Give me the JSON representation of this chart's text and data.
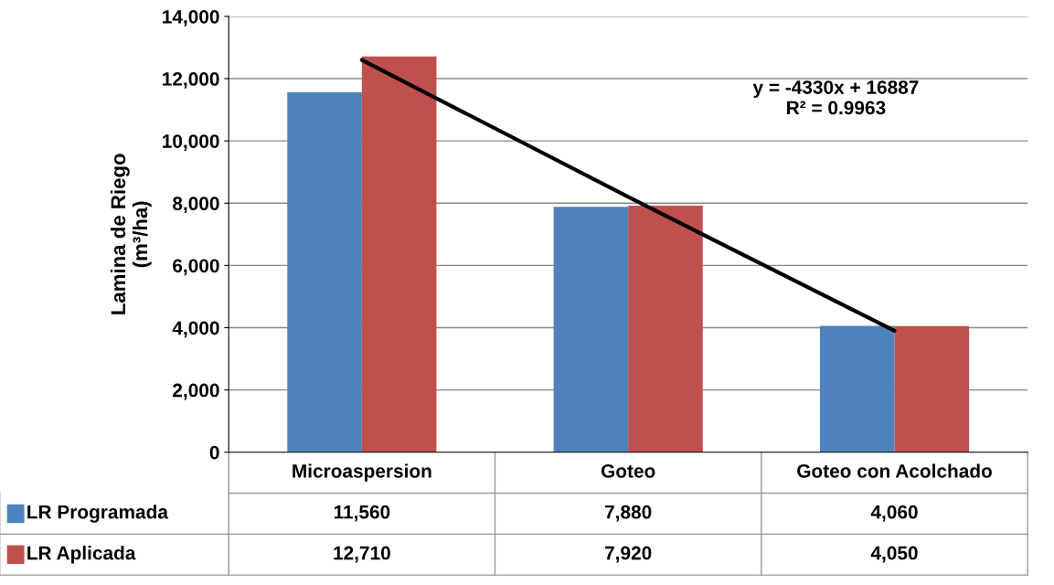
{
  "chart_data": {
    "type": "bar",
    "ylabel": "Lamina de Riego\n(m³/ha)",
    "categories": [
      "Microaspersion",
      "Goteo",
      "Goteo con Acolchado"
    ],
    "series": [
      {
        "name": "LR Programada",
        "color": "#4f81bd",
        "values": [
          11560,
          7880,
          4060
        ],
        "value_labels": [
          "11,560",
          "7,880",
          "4,060"
        ]
      },
      {
        "name": "LR Aplicada",
        "color": "#c0504d",
        "values": [
          12710,
          7920,
          4050
        ],
        "value_labels": [
          "12,710",
          "7,920",
          "4,050"
        ]
      },
      {
        "type": "line",
        "color": "#000000",
        "x": [
          "Microaspersion",
          "Goteo",
          "Goteo con Acolchado"
        ],
        "values": [
          12600,
          8200,
          3900
        ]
      }
    ],
    "ylim": [
      0,
      14000
    ],
    "yticks": [
      {
        "value": 0,
        "label": "0"
      },
      {
        "value": 2000,
        "label": "2,000"
      },
      {
        "value": 4000,
        "label": "4,000"
      },
      {
        "value": 6000,
        "label": "6,000"
      },
      {
        "value": 8000,
        "label": "8,000"
      },
      {
        "value": 10000,
        "label": "10,000"
      },
      {
        "value": 12000,
        "label": "12,000"
      },
      {
        "value": 14000,
        "label": "14,000"
      }
    ],
    "grid": "y",
    "legend": "bottom",
    "annotations": [
      "y = -4330x + 16887\nR² = 0.9963"
    ]
  }
}
